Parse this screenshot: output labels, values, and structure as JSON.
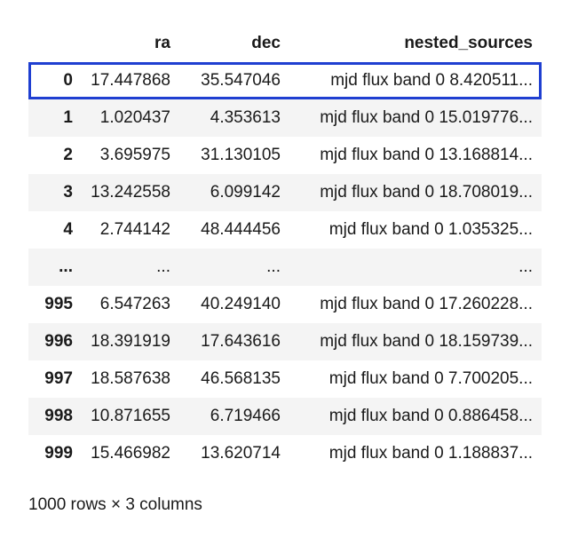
{
  "table": {
    "columns": [
      "ra",
      "dec",
      "nested_sources"
    ],
    "index_header": "",
    "rows": [
      {
        "index": "0",
        "ra": "17.447868",
        "dec": "35.547046",
        "nested_sources": "mjd flux band 0 8.420511..."
      },
      {
        "index": "1",
        "ra": "1.020437",
        "dec": "4.353613",
        "nested_sources": "mjd flux band 0 15.019776..."
      },
      {
        "index": "2",
        "ra": "3.695975",
        "dec": "31.130105",
        "nested_sources": "mjd flux band 0 13.168814..."
      },
      {
        "index": "3",
        "ra": "13.242558",
        "dec": "6.099142",
        "nested_sources": "mjd flux band 0 18.708019..."
      },
      {
        "index": "4",
        "ra": "2.744142",
        "dec": "48.444456",
        "nested_sources": "mjd flux band 0 1.035325..."
      },
      {
        "index": "...",
        "ra": "...",
        "dec": "...",
        "nested_sources": "..."
      },
      {
        "index": "995",
        "ra": "6.547263",
        "dec": "40.249140",
        "nested_sources": "mjd flux band 0 17.260228..."
      },
      {
        "index": "996",
        "ra": "18.391919",
        "dec": "17.643616",
        "nested_sources": "mjd flux band 0 18.159739..."
      },
      {
        "index": "997",
        "ra": "18.587638",
        "dec": "46.568135",
        "nested_sources": "mjd flux band 0 7.700205..."
      },
      {
        "index": "998",
        "ra": "10.871655",
        "dec": "6.719466",
        "nested_sources": "mjd flux band 0 0.886458..."
      },
      {
        "index": "999",
        "ra": "15.466982",
        "dec": "13.620714",
        "nested_sources": "mjd flux band 0 1.188837..."
      }
    ],
    "selected_row": 0
  },
  "footer": {
    "shape_text": "1000 rows × 3 columns"
  },
  "colors": {
    "selection_outline": "#1f3fd1",
    "stripe": "#f4f4f4"
  }
}
